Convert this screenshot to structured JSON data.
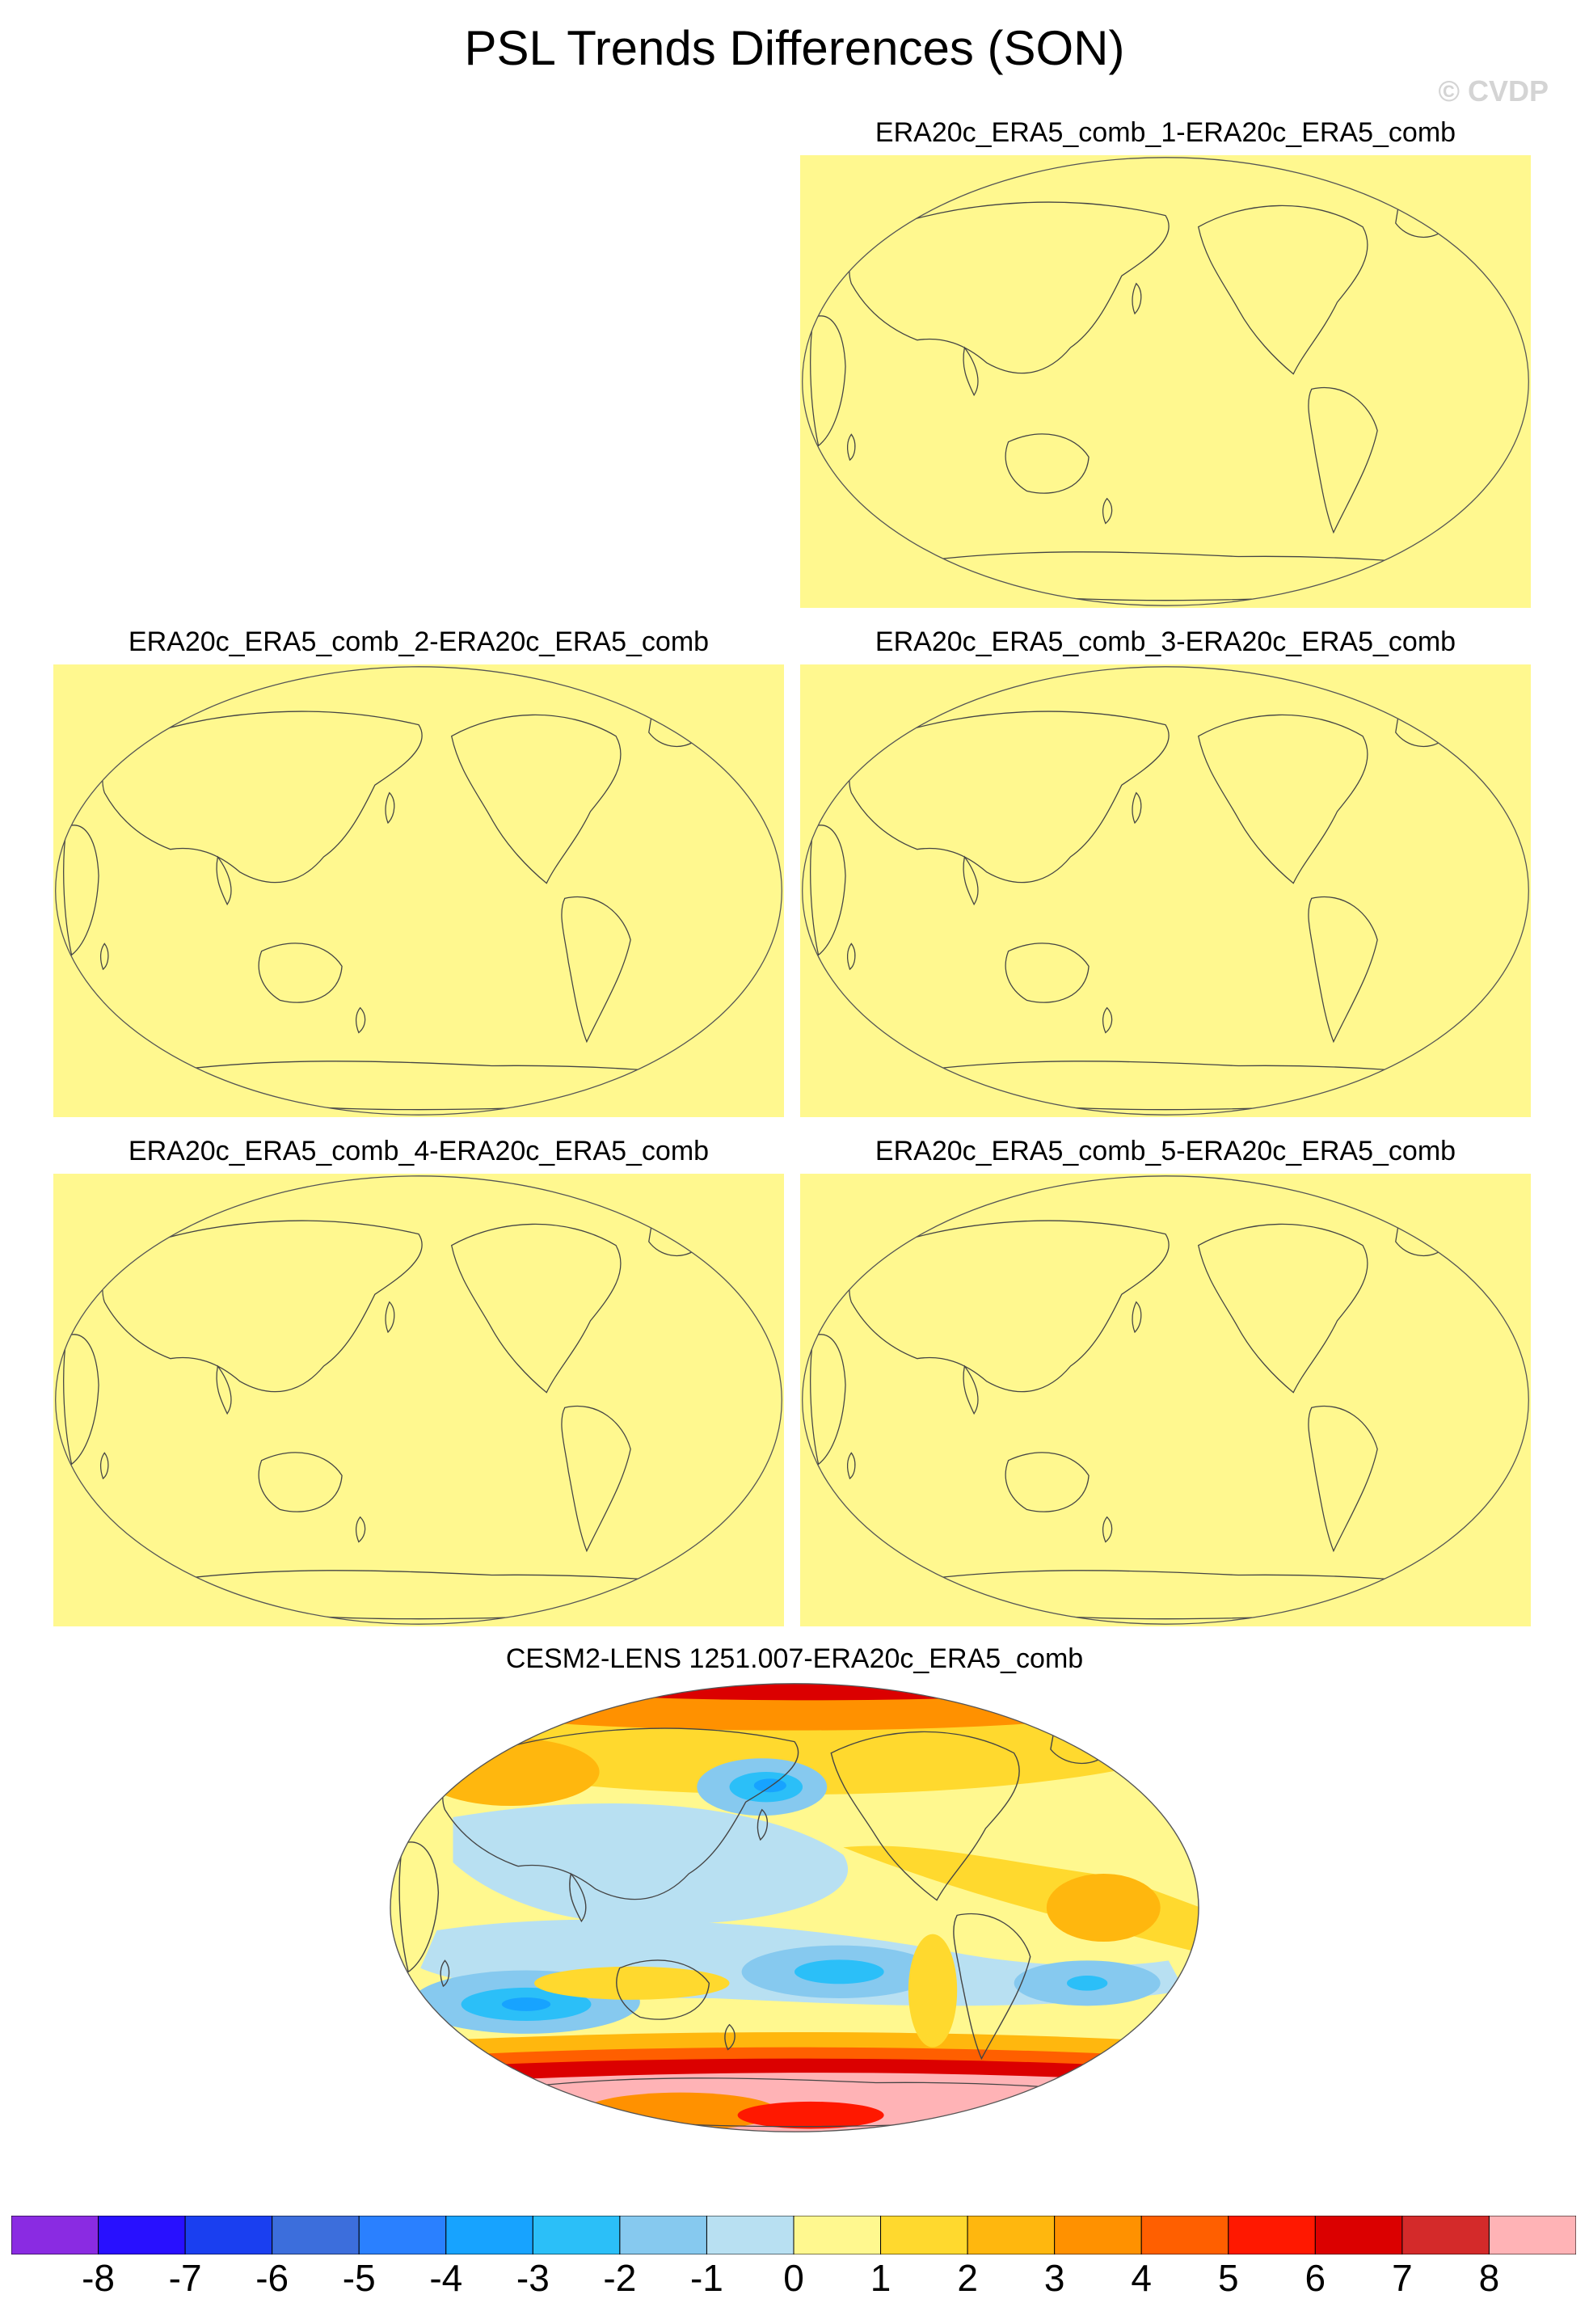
{
  "title": "PSL Trends Differences (SON)",
  "watermark": "© CVDP",
  "panels": [
    {
      "label": "ERA20c_ERA5_comb_1-ERA20c_ERA5_comb",
      "field": "uniform",
      "fill_value": 0.5
    },
    {
      "label": "ERA20c_ERA5_comb_2-ERA20c_ERA5_comb",
      "field": "uniform",
      "fill_value": 0.5
    },
    {
      "label": "ERA20c_ERA5_comb_3-ERA20c_ERA5_comb",
      "field": "uniform",
      "fill_value": 0.5
    },
    {
      "label": "ERA20c_ERA5_comb_4-ERA20c_ERA5_comb",
      "field": "uniform",
      "fill_value": 0.5
    },
    {
      "label": "ERA20c_ERA5_comb_5-ERA20c_ERA5_comb",
      "field": "uniform",
      "fill_value": 0.5
    },
    {
      "label": "CESM2-LENS 1251.007-ERA20c_ERA5_comb",
      "field": "trend-difference-pattern"
    }
  ],
  "colorbar": {
    "labels": [
      "-8",
      "-7",
      "-6",
      "-5",
      "-4",
      "-3",
      "-2",
      "-1",
      "0",
      "1",
      "2",
      "3",
      "4",
      "5",
      "6",
      "7",
      "8"
    ],
    "colors": [
      "#8a2be2",
      "#2810ff",
      "#1a3ff0",
      "#3c6edc",
      "#2a80ff",
      "#17a3ff",
      "#2bbff8",
      "#86c9ef",
      "#b8e0f2",
      "#fff88f",
      "#ffd92e",
      "#ffb70e",
      "#ff9100",
      "#ff5f00",
      "#ff1800",
      "#db0000",
      "#d42a2a",
      "#ffb3b6"
    ]
  },
  "map_colors": {
    "land_outline": "#444444",
    "frame": "#555555"
  }
}
